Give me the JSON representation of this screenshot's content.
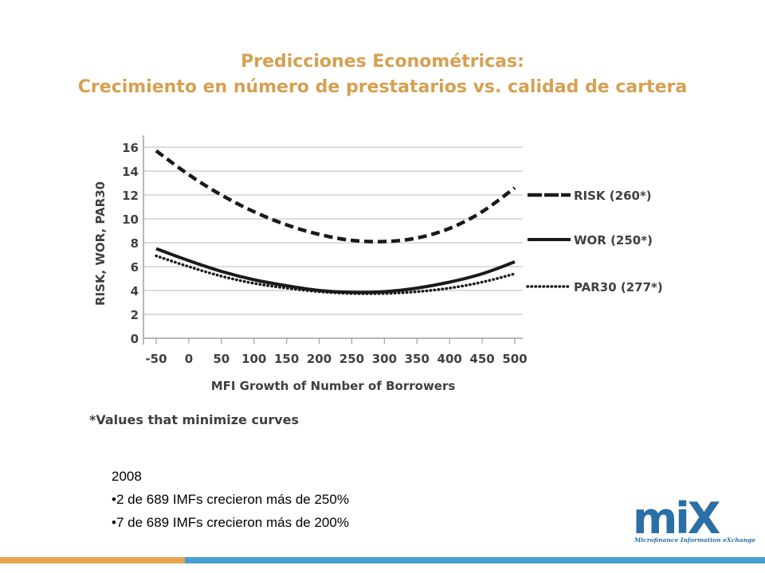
{
  "slide": {
    "title_line1": "Predicciones Econométricas:",
    "title_line2": "Crecimiento en número de prestatarios vs. calidad de cartera",
    "notes": {
      "year": "2008",
      "bullets": [
        "•2 de 689 IMFs crecieron más de 250%",
        "•7 de 689 IMFs crecieron más de 200%"
      ]
    },
    "logo": {
      "wordmark": "miX",
      "caption": "Microfinance Information eXchange"
    },
    "colors": {
      "title": "#d6a050",
      "accent_orange": "#e6a550",
      "accent_blue": "#4a9ed0",
      "logo_blue": "#2a6fa5"
    }
  },
  "chart_data": {
    "type": "line",
    "title": "",
    "xlabel": "MFI Growth of Number of Borrowers",
    "ylabel": "RISK, WOR, PAR30",
    "x": [
      -50,
      0,
      50,
      100,
      150,
      200,
      250,
      300,
      350,
      400,
      450,
      500
    ],
    "x_tick_labels": [
      "-50",
      "0",
      "50",
      "100",
      "150",
      "200",
      "250",
      "300",
      "350",
      "400",
      "450",
      "500"
    ],
    "y_ticks": [
      0,
      2,
      4,
      6,
      8,
      10,
      12,
      14,
      16
    ],
    "xlim": [
      -50,
      500
    ],
    "ylim": [
      0,
      16
    ],
    "grid": "horizontal",
    "legend": "right",
    "footnote": "*Values that minimize curves",
    "series": [
      {
        "name": "RISK (260*)",
        "style": "dashed",
        "values": [
          15.7,
          13.7,
          12.0,
          10.6,
          9.5,
          8.7,
          8.2,
          8.1,
          8.4,
          9.2,
          10.6,
          12.6
        ]
      },
      {
        "name": "WOR (250*)",
        "style": "solid",
        "values": [
          7.5,
          6.5,
          5.6,
          4.9,
          4.4,
          4.0,
          3.85,
          3.9,
          4.2,
          4.7,
          5.4,
          6.4
        ]
      },
      {
        "name": "PAR30 (277*)",
        "style": "dotted",
        "values": [
          6.9,
          6.0,
          5.2,
          4.6,
          4.2,
          3.9,
          3.75,
          3.75,
          3.9,
          4.2,
          4.7,
          5.4
        ]
      }
    ]
  }
}
